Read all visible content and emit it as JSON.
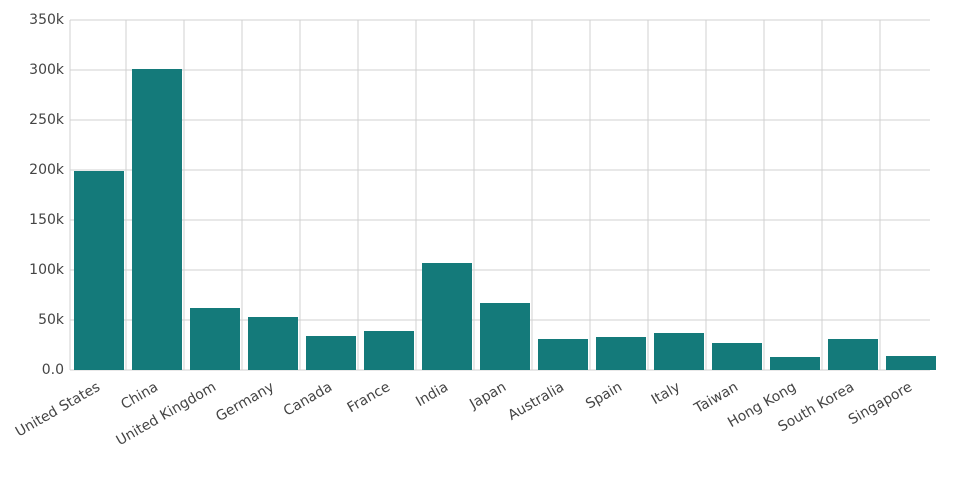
{
  "chart_data": {
    "type": "bar",
    "categories": [
      "United States",
      "China",
      "United Kingdom",
      "Germany",
      "Canada",
      "France",
      "India",
      "Japan",
      "Australia",
      "Spain",
      "Italy",
      "Taiwan",
      "Hong Kong",
      "South Korea",
      "Singapore"
    ],
    "values": [
      199000,
      301000,
      62000,
      53000,
      34000,
      39000,
      107000,
      67000,
      31000,
      33000,
      37000,
      27000,
      13000,
      31000,
      14000
    ],
    "color": "#147a7a",
    "ylim": [
      0,
      350000
    ],
    "yticks": [
      {
        "value": 0,
        "label": "0.0"
      },
      {
        "value": 50000,
        "label": "50k"
      },
      {
        "value": 100000,
        "label": "100k"
      },
      {
        "value": 150000,
        "label": "150k"
      },
      {
        "value": 200000,
        "label": "200k"
      },
      {
        "value": 250000,
        "label": "250k"
      },
      {
        "value": 300000,
        "label": "300k"
      },
      {
        "value": 350000,
        "label": "350k"
      }
    ],
    "grid": true
  }
}
